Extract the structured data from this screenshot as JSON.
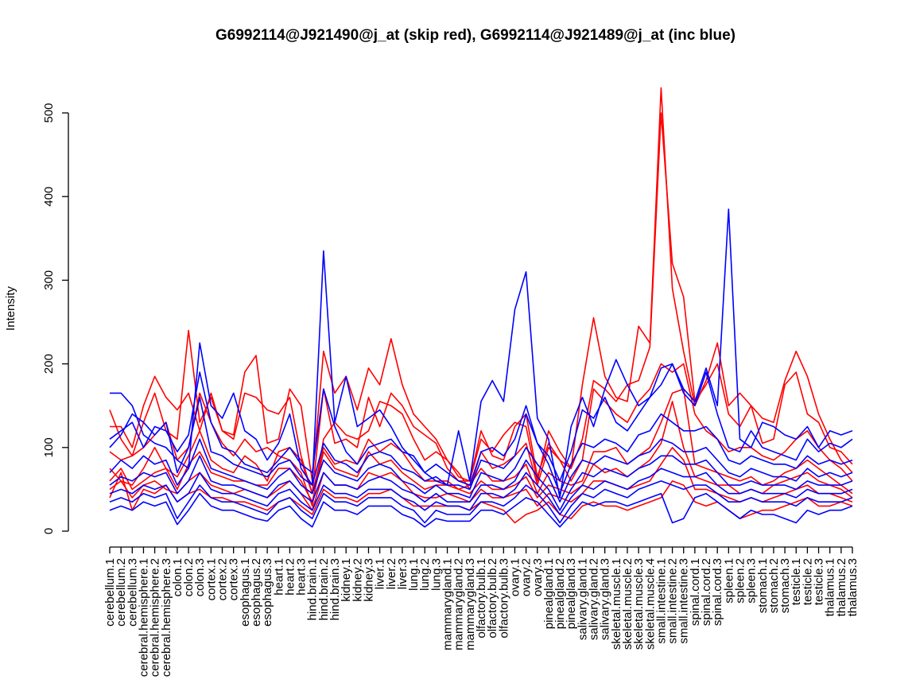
{
  "chart_data": {
    "type": "line",
    "title": "G6992114@J921490@j_at (skip red), G6992114@J921489@j_at (inc blue)",
    "xlabel": "",
    "ylabel": "Intensity",
    "ylim": [
      0,
      500
    ],
    "yticks": [
      0,
      100,
      200,
      300,
      400,
      500
    ],
    "grid": false,
    "legend": "none",
    "colors": {
      "skip": "#ff0000",
      "inc": "#0000ff"
    },
    "categories": [
      "cerebellum.1",
      "cerebellum.2",
      "cerebellum.3",
      "cerebral.hemisphere.1",
      "cerebral.hemisphere.2",
      "cerebral.hemisphere.3",
      "colon.1",
      "colon.2",
      "colon.3",
      "cortex.1",
      "cortex.2",
      "cortex.3",
      "esophagus.1",
      "esophagus.2",
      "esophagus.3",
      "heart.1",
      "heart.2",
      "heart.3",
      "hind.brain.1",
      "hind.brain.2",
      "hind.brain.3",
      "kidney.1",
      "kidney.2",
      "kidney.3",
      "liver.1",
      "liver.2",
      "liver.3",
      "lung.1",
      "lung.2",
      "lung.3",
      "mammarygland.1",
      "mammarygland.2",
      "mammarygland.3",
      "olfactory.bulb.1",
      "olfactory.bulb.2",
      "olfactory.bulb.3",
      "ovary.1",
      "ovary.2",
      "ovary.3",
      "pinealgland.1",
      "pinealgland.2",
      "pinealgland.3",
      "salivary.gland.1",
      "salivary.gland.2",
      "salivary.gland.3",
      "skeletal.muscle.1",
      "skeletal.muscle.2",
      "skeletal.muscle.3",
      "skeletal.muscle.4",
      "small.intestine.1",
      "small.intestine.2",
      "small.intestine.3",
      "spinal.cord.1",
      "spinal.cord.2",
      "spinal.cord.3",
      "spleen.1",
      "spleen.2",
      "spleen.3",
      "stomach.1",
      "stomach.2",
      "stomach.3",
      "testicle.1",
      "testicle.2",
      "testicle.3",
      "thalamus.1",
      "thalamus.2",
      "thalamus.3"
    ],
    "series": [
      {
        "group": "skip",
        "values": [
          145,
          110,
          90,
          130,
          165,
          120,
          110,
          240,
          130,
          160,
          120,
          115,
          190,
          210,
          105,
          110,
          170,
          150,
          60,
          215,
          165,
          185,
          145,
          195,
          175,
          230,
          175,
          140,
          125,
          110,
          85,
          65,
          60,
          110,
          95,
          115,
          130,
          125,
          60,
          120,
          95,
          75,
          175,
          255,
          185,
          160,
          155,
          245,
          225,
          530,
          290,
          215,
          150,
          180,
          225,
          150,
          165,
          150,
          135,
          130,
          180,
          215,
          185,
          140,
          110,
          85,
          70
        ]
      },
      {
        "group": "skip",
        "values": [
          125,
          125,
          100,
          150,
          185,
          160,
          145,
          165,
          120,
          165,
          120,
          110,
          165,
          160,
          145,
          140,
          160,
          90,
          45,
          170,
          105,
          110,
          100,
          160,
          125,
          165,
          150,
          125,
          115,
          105,
          75,
          60,
          60,
          120,
          90,
          85,
          125,
          140,
          65,
          105,
          85,
          75,
          110,
          180,
          170,
          155,
          175,
          180,
          220,
          500,
          320,
          280,
          155,
          175,
          200,
          140,
          125,
          150,
          105,
          110,
          175,
          190,
          140,
          130,
          100,
          95,
          80
        ]
      },
      {
        "group": "skip",
        "values": [
          95,
          85,
          90,
          100,
          115,
          130,
          85,
          100,
          165,
          130,
          105,
          90,
          110,
          95,
          100,
          90,
          85,
          70,
          30,
          110,
          130,
          115,
          110,
          120,
          155,
          150,
          140,
          110,
          85,
          95,
          85,
          70,
          50,
          95,
          75,
          80,
          90,
          105,
          55,
          100,
          85,
          60,
          85,
          170,
          155,
          140,
          130,
          155,
          170,
          200,
          190,
          200,
          140,
          120,
          110,
          95,
          100,
          100,
          90,
          85,
          95,
          110,
          120,
          100,
          85,
          75,
          60
        ]
      },
      {
        "group": "skip",
        "values": [
          75,
          60,
          55,
          75,
          100,
          75,
          65,
          90,
          120,
          85,
          75,
          70,
          90,
          80,
          60,
          95,
          100,
          85,
          45,
          100,
          80,
          85,
          80,
          110,
          95,
          105,
          95,
          75,
          60,
          60,
          60,
          50,
          55,
          75,
          60,
          60,
          65,
          80,
          45,
          70,
          60,
          55,
          60,
          95,
          95,
          100,
          80,
          90,
          100,
          130,
          165,
          170,
          80,
          75,
          70,
          65,
          60,
          65,
          55,
          60,
          70,
          75,
          85,
          75,
          65,
          55,
          45
        ]
      },
      {
        "group": "skip",
        "values": [
          60,
          75,
          50,
          60,
          70,
          75,
          50,
          80,
          95,
          70,
          65,
          60,
          60,
          55,
          55,
          75,
          75,
          60,
          35,
          95,
          75,
          70,
          65,
          95,
          80,
          85,
          70,
          60,
          50,
          55,
          55,
          50,
          45,
          60,
          50,
          50,
          55,
          65,
          40,
          55,
          50,
          45,
          55,
          80,
          70,
          75,
          65,
          75,
          85,
          105,
          155,
          100,
          65,
          60,
          55,
          55,
          45,
          50,
          45,
          55,
          60,
          65,
          70,
          60,
          55,
          50,
          40
        ]
      },
      {
        "group": "skip",
        "values": [
          50,
          60,
          40,
          55,
          60,
          50,
          45,
          60,
          70,
          55,
          50,
          45,
          50,
          45,
          40,
          50,
          60,
          45,
          25,
          70,
          55,
          55,
          50,
          70,
          65,
          70,
          60,
          45,
          40,
          40,
          45,
          40,
          35,
          50,
          40,
          40,
          45,
          50,
          30,
          45,
          40,
          35,
          45,
          60,
          60,
          55,
          50,
          55,
          60,
          80,
          100,
          85,
          50,
          50,
          45,
          40,
          35,
          40,
          35,
          40,
          45,
          50,
          55,
          45,
          45,
          40,
          35
        ]
      },
      {
        "group": "skip",
        "values": [
          40,
          70,
          25,
          50,
          45,
          55,
          35,
          45,
          50,
          40,
          40,
          35,
          35,
          30,
          25,
          35,
          40,
          30,
          20,
          50,
          40,
          40,
          35,
          45,
          45,
          50,
          40,
          30,
          30,
          30,
          30,
          30,
          25,
          35,
          30,
          25,
          10,
          20,
          25,
          35,
          20,
          15,
          30,
          35,
          30,
          30,
          25,
          30,
          35,
          40,
          60,
          55,
          35,
          30,
          35,
          25,
          15,
          20,
          25,
          25,
          30,
          35,
          40,
          30,
          30,
          35,
          30
        ]
      },
      {
        "group": "inc",
        "values": [
          165,
          165,
          150,
          115,
          105,
          100,
          85,
          75,
          225,
          150,
          135,
          165,
          120,
          110,
          85,
          105,
          140,
          75,
          55,
          335,
          130,
          185,
          125,
          135,
          145,
          125,
          100,
          85,
          70,
          60,
          55,
          120,
          60,
          155,
          180,
          155,
          265,
          310,
          135,
          110,
          40,
          125,
          160,
          125,
          170,
          205,
          175,
          150,
          160,
          195,
          200,
          170,
          155,
          195,
          150,
          385,
          110,
          100,
          130,
          125,
          115,
          110,
          125,
          100,
          120,
          115,
          120
        ]
      },
      {
        "group": "inc",
        "values": [
          110,
          120,
          130,
          100,
          125,
          120,
          95,
          115,
          190,
          130,
          100,
          95,
          80,
          75,
          70,
          85,
          100,
          80,
          70,
          170,
          125,
          95,
          80,
          100,
          105,
          110,
          95,
          90,
          70,
          80,
          70,
          60,
          55,
          95,
          100,
          90,
          110,
          150,
          105,
          90,
          60,
          95,
          145,
          135,
          160,
          130,
          120,
          140,
          160,
          175,
          200,
          165,
          150,
          190,
          140,
          100,
          95,
          120,
          100,
          95,
          90,
          85,
          110,
          95,
          105,
          100,
          110
        ]
      },
      {
        "group": "inc",
        "values": [
          100,
          115,
          140,
          130,
          115,
          130,
          70,
          100,
          160,
          95,
          90,
          80,
          75,
          70,
          65,
          80,
          85,
          65,
          55,
          105,
          85,
          80,
          70,
          90,
          95,
          90,
          75,
          70,
          60,
          65,
          55,
          55,
          50,
          85,
          80,
          75,
          90,
          140,
          105,
          80,
          45,
          80,
          105,
          100,
          110,
          105,
          95,
          115,
          120,
          140,
          130,
          120,
          120,
          125,
          110,
          85,
          80,
          90,
          85,
          80,
          80,
          75,
          90,
          80,
          85,
          80,
          85
        ]
      },
      {
        "group": "inc",
        "values": [
          70,
          85,
          75,
          90,
          80,
          85,
          55,
          75,
          110,
          75,
          70,
          65,
          60,
          55,
          50,
          65,
          75,
          55,
          45,
          85,
          70,
          65,
          60,
          75,
          80,
          75,
          60,
          55,
          45,
          55,
          45,
          45,
          40,
          70,
          65,
          60,
          75,
          100,
          80,
          65,
          35,
          65,
          85,
          80,
          90,
          85,
          80,
          90,
          95,
          110,
          105,
          95,
          95,
          100,
          85,
          70,
          65,
          75,
          70,
          65,
          65,
          60,
          75,
          65,
          70,
          65,
          70
        ]
      },
      {
        "group": "inc",
        "values": [
          55,
          65,
          60,
          70,
          65,
          70,
          45,
          60,
          90,
          60,
          55,
          55,
          50,
          45,
          40,
          55,
          60,
          45,
          35,
          70,
          55,
          55,
          50,
          60,
          65,
          60,
          50,
          45,
          35,
          45,
          35,
          35,
          35,
          55,
          55,
          50,
          60,
          85,
          65,
          50,
          25,
          50,
          70,
          65,
          75,
          70,
          65,
          75,
          80,
          90,
          90,
          80,
          80,
          85,
          70,
          55,
          55,
          60,
          55,
          55,
          55,
          50,
          60,
          55,
          55,
          55,
          60
        ]
      },
      {
        "group": "inc",
        "values": [
          45,
          50,
          45,
          55,
          50,
          55,
          35,
          45,
          70,
          50,
          45,
          45,
          40,
          35,
          30,
          45,
          50,
          35,
          25,
          55,
          45,
          45,
          40,
          50,
          50,
          50,
          40,
          35,
          25,
          35,
          30,
          30,
          25,
          45,
          45,
          40,
          50,
          70,
          55,
          40,
          20,
          40,
          55,
          50,
          60,
          55,
          50,
          60,
          65,
          75,
          70,
          65,
          65,
          70,
          55,
          45,
          45,
          50,
          45,
          45,
          45,
          40,
          50,
          45,
          45,
          45,
          50
        ]
      },
      {
        "group": "inc",
        "values": [
          35,
          40,
          35,
          45,
          40,
          45,
          15,
          35,
          55,
          40,
          35,
          35,
          30,
          25,
          20,
          35,
          40,
          25,
          15,
          45,
          35,
          35,
          30,
          40,
          40,
          40,
          30,
          25,
          10,
          25,
          20,
          20,
          20,
          35,
          35,
          30,
          40,
          55,
          45,
          30,
          10,
          30,
          45,
          40,
          50,
          45,
          40,
          50,
          55,
          60,
          55,
          50,
          55,
          55,
          45,
          35,
          35,
          40,
          35,
          35,
          35,
          30,
          40,
          35,
          35,
          35,
          40
        ]
      },
      {
        "group": "inc",
        "values": [
          25,
          30,
          25,
          35,
          30,
          35,
          8,
          25,
          45,
          30,
          25,
          25,
          20,
          15,
          12,
          25,
          30,
          15,
          5,
          35,
          25,
          25,
          20,
          30,
          30,
          30,
          20,
          15,
          5,
          15,
          12,
          12,
          12,
          25,
          25,
          20,
          30,
          40,
          35,
          20,
          5,
          20,
          35,
          30,
          35,
          35,
          30,
          35,
          40,
          45,
          10,
          15,
          40,
          45,
          35,
          25,
          15,
          25,
          20,
          20,
          15,
          10,
          25,
          20,
          25,
          25,
          30
        ]
      }
    ]
  }
}
